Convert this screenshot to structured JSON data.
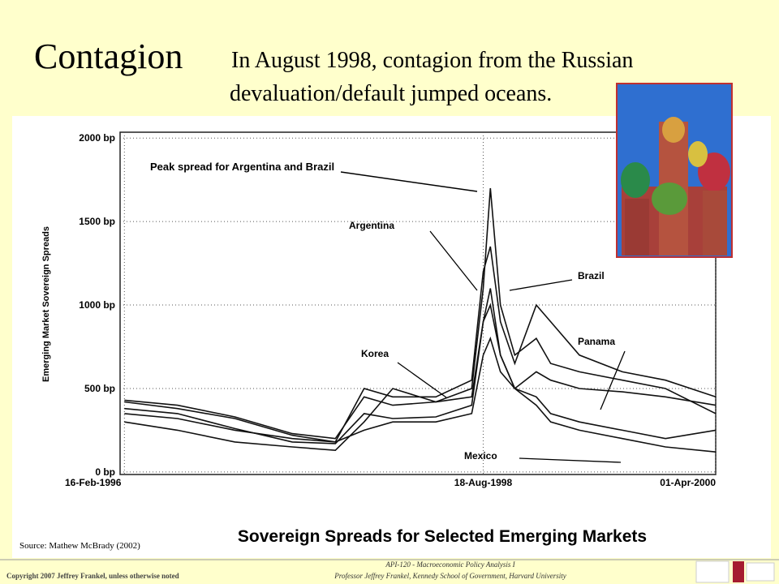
{
  "title": "Contagion",
  "subtitle": [
    "In August 1998, contagion from the Russian",
    "devaluation/default jumped oceans."
  ],
  "footer": {
    "copyright": "Copyright 2007 Jeffrey Frankel, unless otherwise noted",
    "course": "API-120 - Macroeconomic Policy Analysis I",
    "professor": "Professor Jeffrey Frankel, Kennedy School of Government, Harvard University"
  },
  "chart_data": {
    "type": "line",
    "title": "Sovereign Spreads for Selected Emerging Markets",
    "y_label": "Emerging Market Sovereign Spreads",
    "source": "Source: Mathew McBrady (2002)",
    "annotation": "Peak spread for Argentina and Brazil",
    "x": [
      1996.13,
      1996.5,
      1996.9,
      1997.3,
      1997.6,
      1997.8,
      1998.0,
      1998.3,
      1998.55,
      1998.63,
      1998.68,
      1998.75,
      1998.85,
      1999.0,
      1999.1,
      1999.3,
      1999.6,
      1999.9,
      2000.25
    ],
    "xlim": [
      1996.1,
      2000.25
    ],
    "xticks": [
      {
        "value": 1996.13,
        "label": "16-Feb-1996"
      },
      {
        "value": 1998.63,
        "label": "18-Aug-1998"
      },
      {
        "value": 2000.25,
        "label": "01-Apr-2000"
      }
    ],
    "ylim": [
      -15,
      2035
    ],
    "yticks": [
      {
        "value": 0,
        "label": "0 bp"
      },
      {
        "value": 500,
        "label": "500 bp"
      },
      {
        "value": 1000,
        "label": "1000 bp"
      },
      {
        "value": 1500,
        "label": "1500 bp"
      },
      {
        "value": 2000,
        "label": "2000 bp"
      }
    ],
    "grid": true,
    "series": [
      {
        "name": "Argentina",
        "color": "#111111",
        "values": [
          430,
          400,
          330,
          230,
          200,
          450,
          400,
          420,
          500,
          1100,
          1700,
          1000,
          700,
          800,
          650,
          600,
          550,
          500,
          350
        ]
      },
      {
        "name": "Brazil",
        "color": "#111111",
        "values": [
          420,
          380,
          320,
          220,
          180,
          500,
          450,
          450,
          550,
          1200,
          1350,
          900,
          650,
          1000,
          900,
          700,
          600,
          550,
          450
        ]
      },
      {
        "name": "Korea",
        "color": "#111111",
        "values": [
          300,
          250,
          180,
          150,
          130,
          300,
          500,
          420,
          450,
          900,
          1000,
          700,
          500,
          400,
          300,
          250,
          200,
          150,
          120
        ]
      },
      {
        "name": "Panama",
        "color": "#111111",
        "values": [
          350,
          320,
          250,
          200,
          180,
          250,
          300,
          300,
          350,
          700,
          800,
          600,
          500,
          600,
          550,
          500,
          480,
          450,
          400
        ]
      },
      {
        "name": "Mexico",
        "color": "#111111",
        "values": [
          380,
          350,
          260,
          180,
          170,
          350,
          320,
          330,
          400,
          900,
          1100,
          700,
          500,
          450,
          350,
          300,
          250,
          200,
          250
        ]
      }
    ]
  }
}
